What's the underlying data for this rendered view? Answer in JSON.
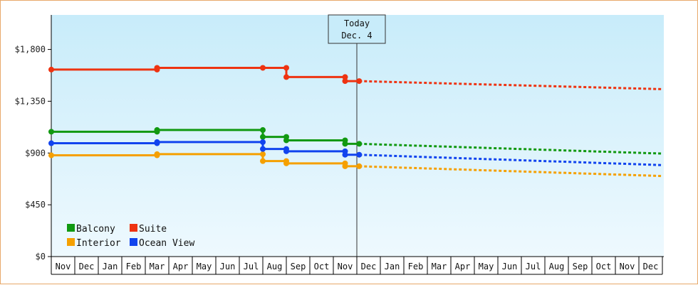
{
  "chart_data": {
    "type": "line",
    "title": "",
    "xlabel": "",
    "ylabel": "",
    "y_ticks": [
      "$1,800",
      "$1,350",
      "$900",
      "$450",
      "$0"
    ],
    "ylim": [
      0,
      2100
    ],
    "x_months": [
      "Nov",
      "Dec",
      "Jan",
      "Feb",
      "Mar",
      "Apr",
      "May",
      "Jun",
      "Jul",
      "Aug",
      "Sep",
      "Oct",
      "Nov",
      "Dec",
      "Jan",
      "Feb",
      "Mar",
      "Apr",
      "May",
      "Jun",
      "Jul",
      "Aug",
      "Sep",
      "Oct",
      "Nov",
      "Dec"
    ],
    "today": {
      "line1": "Today",
      "line2": "Dec. 4",
      "month_index": 13
    },
    "legend": {
      "position": "bottom-left"
    },
    "series": [
      {
        "name": "Balcony",
        "color": "#119911",
        "observed": [
          [
            0,
            1085
          ],
          [
            4.5,
            1085
          ],
          [
            4.5,
            1100
          ],
          [
            9,
            1100
          ],
          [
            9,
            1040
          ],
          [
            10,
            1040
          ],
          [
            10,
            1010
          ],
          [
            12.5,
            1010
          ],
          [
            12.5,
            980
          ],
          [
            13.1,
            980
          ]
        ],
        "markers": [
          [
            0,
            1085
          ],
          [
            4.5,
            1085
          ],
          [
            4.5,
            1100
          ],
          [
            9,
            1100
          ],
          [
            9,
            1040
          ],
          [
            10,
            1040
          ],
          [
            10,
            1010
          ],
          [
            12.5,
            1010
          ],
          [
            12.5,
            980
          ],
          [
            13.1,
            980
          ]
        ],
        "forecast": [
          [
            13.1,
            980
          ],
          [
            26,
            895
          ]
        ]
      },
      {
        "name": "Suite",
        "color": "#ee3311",
        "observed": [
          [
            0,
            1625
          ],
          [
            4.5,
            1625
          ],
          [
            4.5,
            1640
          ],
          [
            9,
            1640
          ],
          [
            10,
            1640
          ],
          [
            10,
            1560
          ],
          [
            12.5,
            1560
          ],
          [
            12.5,
            1525
          ],
          [
            13.1,
            1525
          ]
        ],
        "markers": [
          [
            0,
            1625
          ],
          [
            4.5,
            1625
          ],
          [
            4.5,
            1640
          ],
          [
            9,
            1640
          ],
          [
            10,
            1640
          ],
          [
            10,
            1560
          ],
          [
            12.5,
            1560
          ],
          [
            12.5,
            1525
          ],
          [
            13.1,
            1525
          ]
        ],
        "forecast": [
          [
            13.1,
            1525
          ],
          [
            26,
            1455
          ]
        ]
      },
      {
        "name": "Interior",
        "color": "#f5a000",
        "observed": [
          [
            0,
            880
          ],
          [
            4.5,
            880
          ],
          [
            4.5,
            890
          ],
          [
            9,
            890
          ],
          [
            9,
            830
          ],
          [
            10,
            830
          ],
          [
            10,
            810
          ],
          [
            12.5,
            810
          ],
          [
            12.5,
            785
          ],
          [
            13.1,
            785
          ]
        ],
        "markers": [
          [
            0,
            880
          ],
          [
            4.5,
            880
          ],
          [
            4.5,
            890
          ],
          [
            9,
            890
          ],
          [
            9,
            830
          ],
          [
            10,
            830
          ],
          [
            10,
            810
          ],
          [
            12.5,
            810
          ],
          [
            12.5,
            785
          ],
          [
            13.1,
            785
          ]
        ],
        "forecast": [
          [
            13.1,
            785
          ],
          [
            26,
            700
          ]
        ]
      },
      {
        "name": "Ocean View",
        "color": "#1144ee",
        "observed": [
          [
            0,
            985
          ],
          [
            4.5,
            985
          ],
          [
            4.5,
            995
          ],
          [
            9,
            995
          ],
          [
            9,
            935
          ],
          [
            10,
            935
          ],
          [
            10,
            915
          ],
          [
            12.5,
            915
          ],
          [
            12.5,
            885
          ],
          [
            13.1,
            885
          ]
        ],
        "markers": [
          [
            0,
            985
          ],
          [
            4.5,
            985
          ],
          [
            4.5,
            995
          ],
          [
            9,
            995
          ],
          [
            9,
            935
          ],
          [
            10,
            935
          ],
          [
            10,
            915
          ],
          [
            12.5,
            915
          ],
          [
            12.5,
            885
          ],
          [
            13.1,
            885
          ]
        ],
        "forecast": [
          [
            13.1,
            885
          ],
          [
            26,
            795
          ]
        ]
      }
    ]
  }
}
